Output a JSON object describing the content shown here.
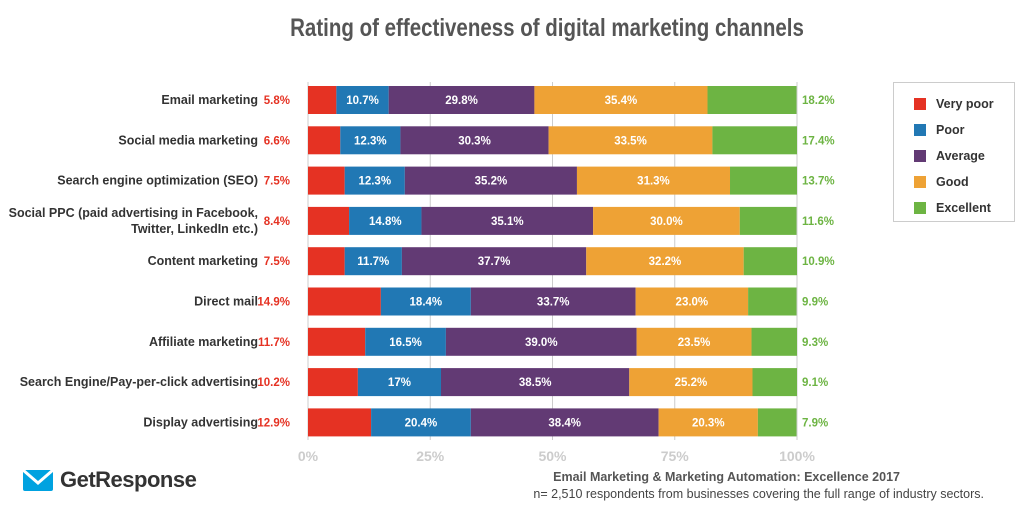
{
  "chart_data": {
    "type": "bar",
    "orientation": "horizontal",
    "stacked": true,
    "title": "Rating of effectiveness of digital marketing channels",
    "categories": [
      "Email marketing",
      "Social media marketing",
      "Search engine optimization (SEO)",
      "Social PPC (paid advertising in Facebook, Twitter, LinkedIn etc.)",
      "Content marketing",
      "Direct mail",
      "Affiliate marketing",
      "Search Engine/Pay-per-click advertising",
      "Display advertising"
    ],
    "category_lines": [
      [
        "Email marketing"
      ],
      [
        "Social media marketing"
      ],
      [
        "Search engine optimization (SEO)"
      ],
      [
        "Social PPC (paid advertising in Facebook,",
        "Twitter, LinkedIn etc.)"
      ],
      [
        "Content marketing"
      ],
      [
        "Direct mail"
      ],
      [
        "Affiliate marketing"
      ],
      [
        "Search Engine/Pay-per-click advertising"
      ],
      [
        "Display advertising"
      ]
    ],
    "series": [
      {
        "name": "Very poor",
        "color": "#e53223",
        "values": [
          5.8,
          6.6,
          7.5,
          8.4,
          7.5,
          14.9,
          11.7,
          10.2,
          12.9
        ],
        "labels": [
          "5.8%",
          "6.6%",
          "7.5%",
          "8.4%",
          "7.5%",
          "14.9%",
          "11.7%",
          "10.2%",
          "12.9%"
        ]
      },
      {
        "name": "Poor",
        "color": "#2178b4",
        "values": [
          10.7,
          12.3,
          12.3,
          14.8,
          11.7,
          18.4,
          16.5,
          17,
          20.4
        ],
        "labels": [
          "10.7%",
          "12.3%",
          "12.3%",
          "14.8%",
          "11.7%",
          "18.4%",
          "16.5%",
          "17%",
          "20.4%"
        ]
      },
      {
        "name": "Average",
        "color": "#623a74",
        "values": [
          29.8,
          30.3,
          35.2,
          35.1,
          37.7,
          33.7,
          39.0,
          38.5,
          38.4
        ],
        "labels": [
          "29.8%",
          "30.3%",
          "35.2%",
          "35.1%",
          "37.7%",
          "33.7%",
          "39.0%",
          "38.5%",
          "38.4%"
        ]
      },
      {
        "name": "Good",
        "color": "#eea235",
        "values": [
          35.4,
          33.5,
          31.3,
          30.0,
          32.2,
          23.0,
          23.5,
          25.2,
          20.3
        ],
        "labels": [
          "35.4%",
          "33.5%",
          "31.3%",
          "30.0%",
          "32.2%",
          "23.0%",
          "23.5%",
          "25.2%",
          "20.3%"
        ]
      },
      {
        "name": "Excellent",
        "color": "#6db443",
        "values": [
          18.2,
          17.4,
          13.7,
          11.6,
          10.9,
          9.9,
          9.3,
          9.1,
          7.9
        ],
        "labels": [
          "18.2%",
          "17.4%",
          "13.7%",
          "11.6%",
          "10.9%",
          "9.9%",
          "9.3%",
          "9.1%",
          "7.9%"
        ]
      }
    ],
    "xlim": [
      0,
      100
    ],
    "xticks": [
      "0%",
      "25%",
      "50%",
      "75%",
      "100%"
    ],
    "grid": true,
    "legend": "right"
  },
  "brand": {
    "name": "GetResponse"
  },
  "source": {
    "title": "Email Marketing & Marketing Automation: Excellence 2017",
    "note": "n= 2,510 respondents from businesses covering the full range of industry sectors."
  }
}
